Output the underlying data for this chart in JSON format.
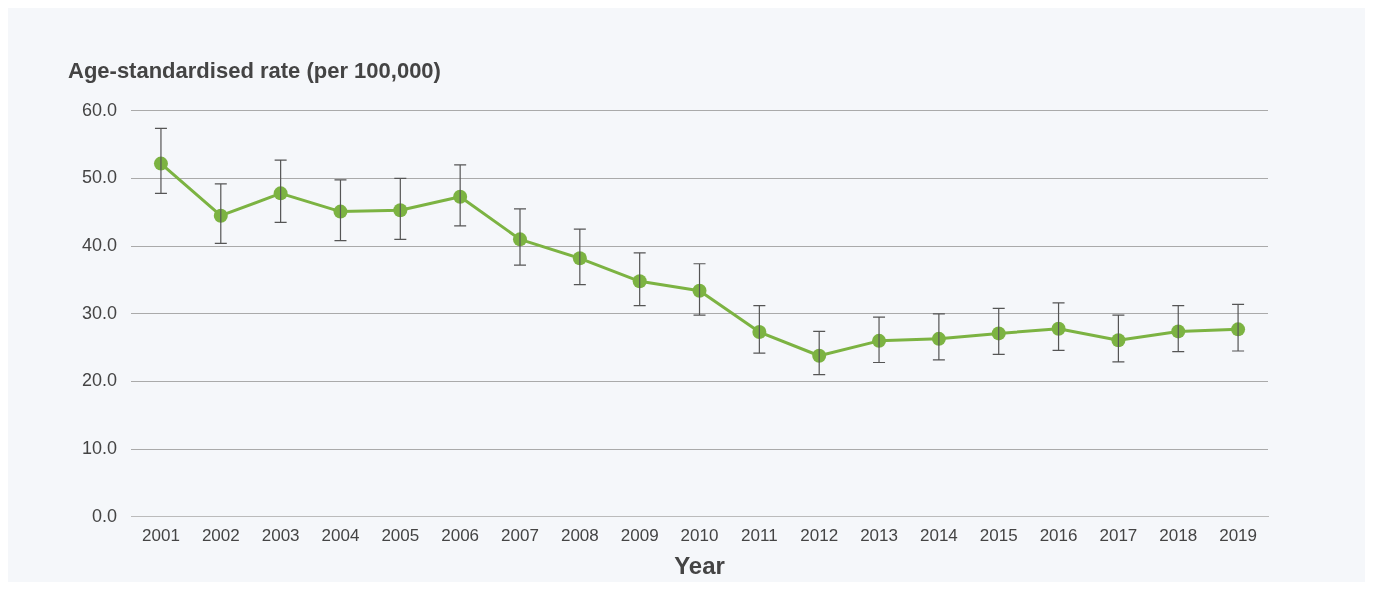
{
  "chart_data": {
    "type": "line",
    "ylabel": "Age-standardised rate (per 100,000)",
    "xlabel": "Year",
    "categories": [
      "2001",
      "2002",
      "2003",
      "2004",
      "2005",
      "2006",
      "2007",
      "2008",
      "2009",
      "2010",
      "2011",
      "2012",
      "2013",
      "2014",
      "2015",
      "2016",
      "2017",
      "2018",
      "2019"
    ],
    "series": [
      {
        "color": "#7cb342",
        "values": [
          52.2,
          44.5,
          47.8,
          45.1,
          45.3,
          47.3,
          41.0,
          38.2,
          34.8,
          33.4,
          27.3,
          23.8,
          26.0,
          26.3,
          27.1,
          27.8,
          26.1,
          27.4,
          27.7
        ],
        "errors": [
          [
            47.8,
            57.4
          ],
          [
            40.4,
            49.2
          ],
          [
            43.5,
            52.7
          ],
          [
            40.8,
            49.8
          ],
          [
            41.0,
            50.0
          ],
          [
            43.0,
            52.0
          ],
          [
            37.2,
            45.5
          ],
          [
            34.3,
            42.5
          ],
          [
            31.2,
            39.0
          ],
          [
            29.8,
            37.4
          ],
          [
            24.2,
            31.2
          ],
          [
            21.0,
            27.4
          ],
          [
            22.8,
            29.5
          ],
          [
            23.2,
            30.0
          ],
          [
            24.0,
            30.8
          ],
          [
            24.6,
            31.6
          ],
          [
            22.9,
            29.8
          ],
          [
            24.4,
            31.2
          ],
          [
            24.5,
            31.4
          ]
        ]
      }
    ],
    "ylim": [
      0,
      60
    ],
    "yticks": [
      {
        "value": 0,
        "label": "0.0"
      },
      {
        "value": 10,
        "label": "10.0"
      },
      {
        "value": 20,
        "label": "20.0"
      },
      {
        "value": 30,
        "label": "30.0"
      },
      {
        "value": 40,
        "label": "40.0"
      },
      {
        "value": 50,
        "label": "50.0"
      },
      {
        "value": 60,
        "label": "60.0"
      }
    ],
    "grid": "y",
    "legend": false,
    "marker": "circle",
    "line_style": "solid"
  }
}
